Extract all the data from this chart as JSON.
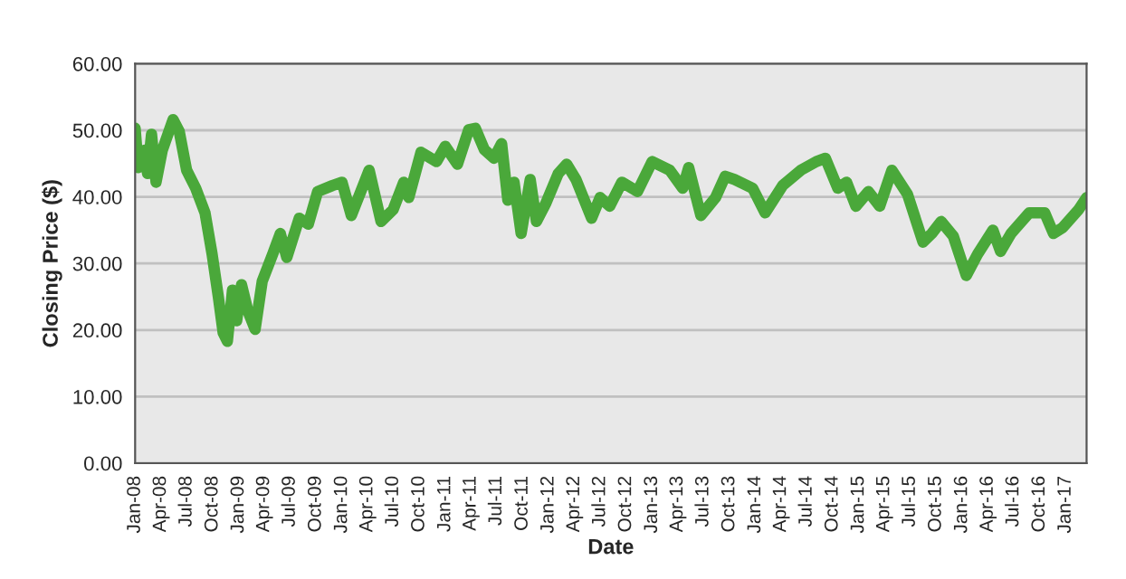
{
  "chart_data": {
    "type": "line",
    "xlabel": "Date",
    "ylabel": "Closing Price ($)",
    "grid": "y",
    "legend": false,
    "marker": "none",
    "line_style": "solid",
    "xlim": [
      "2008-01-01",
      "2017-03-16"
    ],
    "ylim": [
      0,
      60
    ],
    "yticks": [
      {
        "value": 0,
        "label": "0.00"
      },
      {
        "value": 10,
        "label": "10.00"
      },
      {
        "value": 20,
        "label": "20.00"
      },
      {
        "value": 30,
        "label": "30.00"
      },
      {
        "value": 40,
        "label": "40.00"
      },
      {
        "value": 50,
        "label": "50.00"
      },
      {
        "value": 60,
        "label": "60.00"
      }
    ],
    "xticks": [
      {
        "value": "2008-01-01",
        "label": "Jan-08"
      },
      {
        "value": "2008-04-01",
        "label": "Apr-08"
      },
      {
        "value": "2008-07-01",
        "label": "Jul-08"
      },
      {
        "value": "2008-10-01",
        "label": "Oct-08"
      },
      {
        "value": "2009-01-01",
        "label": "Jan-09"
      },
      {
        "value": "2009-04-01",
        "label": "Apr-09"
      },
      {
        "value": "2009-07-01",
        "label": "Jul-09"
      },
      {
        "value": "2009-10-01",
        "label": "Oct-09"
      },
      {
        "value": "2010-01-01",
        "label": "Jan-10"
      },
      {
        "value": "2010-04-01",
        "label": "Apr-10"
      },
      {
        "value": "2010-07-01",
        "label": "Jul-10"
      },
      {
        "value": "2010-10-01",
        "label": "Oct-10"
      },
      {
        "value": "2011-01-01",
        "label": "Jan-11"
      },
      {
        "value": "2011-04-01",
        "label": "Apr-11"
      },
      {
        "value": "2011-07-01",
        "label": "Jul-11"
      },
      {
        "value": "2011-10-01",
        "label": "Oct-11"
      },
      {
        "value": "2012-01-01",
        "label": "Jan-12"
      },
      {
        "value": "2012-04-01",
        "label": "Apr-12"
      },
      {
        "value": "2012-07-01",
        "label": "Jul-12"
      },
      {
        "value": "2012-10-01",
        "label": "Oct-12"
      },
      {
        "value": "2013-01-01",
        "label": "Jan-13"
      },
      {
        "value": "2013-04-01",
        "label": "Apr-13"
      },
      {
        "value": "2013-07-01",
        "label": "Jul-13"
      },
      {
        "value": "2013-10-01",
        "label": "Oct-13"
      },
      {
        "value": "2014-01-01",
        "label": "Jan-14"
      },
      {
        "value": "2014-04-01",
        "label": "Apr-14"
      },
      {
        "value": "2014-07-01",
        "label": "Jul-14"
      },
      {
        "value": "2014-10-01",
        "label": "Oct-14"
      },
      {
        "value": "2015-01-01",
        "label": "Jan-15"
      },
      {
        "value": "2015-04-01",
        "label": "Apr-15"
      },
      {
        "value": "2015-07-01",
        "label": "Jul-15"
      },
      {
        "value": "2015-10-01",
        "label": "Oct-15"
      },
      {
        "value": "2016-01-01",
        "label": "Jan-16"
      },
      {
        "value": "2016-04-01",
        "label": "Apr-16"
      },
      {
        "value": "2016-07-01",
        "label": "Jul-16"
      },
      {
        "value": "2016-10-01",
        "label": "Oct-16"
      },
      {
        "value": "2017-01-01",
        "label": "Jan-17"
      }
    ],
    "series": [
      {
        "color": "#4aa83a",
        "x": [
          "2008-01-01",
          "2008-01-12",
          "2008-02-03",
          "2008-02-14",
          "2008-02-28",
          "2008-03-15",
          "2008-04-06",
          "2008-05-14",
          "2008-06-05",
          "2008-07-01",
          "2008-08-02",
          "2008-09-04",
          "2008-09-29",
          "2008-10-21",
          "2008-11-07",
          "2008-11-22",
          "2008-12-10",
          "2008-12-25",
          "2009-01-11",
          "2009-02-03",
          "2009-02-28",
          "2009-03-25",
          "2009-05-01",
          "2009-05-28",
          "2009-06-20",
          "2009-08-03",
          "2009-09-04",
          "2009-10-07",
          "2009-11-28",
          "2010-01-01",
          "2010-02-03",
          "2010-04-07",
          "2010-05-19",
          "2010-07-01",
          "2010-08-07",
          "2010-08-25",
          "2010-10-07",
          "2010-12-01",
          "2011-01-01",
          "2011-02-13",
          "2011-03-25",
          "2011-04-17",
          "2011-05-19",
          "2011-06-22",
          "2011-07-19",
          "2011-08-10",
          "2011-09-01",
          "2011-09-26",
          "2011-10-28",
          "2011-11-19",
          "2011-12-22",
          "2012-02-04",
          "2012-03-05",
          "2012-04-07",
          "2012-06-01",
          "2012-07-01",
          "2012-08-04",
          "2012-09-16",
          "2012-11-10",
          "2013-01-01",
          "2013-03-04",
          "2013-04-19",
          "2013-05-10",
          "2013-06-22",
          "2013-08-13",
          "2013-09-16",
          "2013-10-19",
          "2013-12-22",
          "2014-02-04",
          "2014-04-07",
          "2014-06-10",
          "2014-08-04",
          "2014-09-05",
          "2014-10-19",
          "2014-11-19",
          "2014-12-22",
          "2015-02-04",
          "2015-03-16",
          "2015-04-28",
          "2015-06-22",
          "2015-08-16",
          "2015-09-16",
          "2015-10-19",
          "2015-12-01",
          "2016-01-16",
          "2016-02-25",
          "2016-04-19",
          "2016-05-16",
          "2016-06-22",
          "2016-08-25",
          "2016-10-19",
          "2016-11-19",
          "2016-12-22",
          "2017-02-16",
          "2017-03-16"
        ],
        "values": [
          50.3,
          44.4,
          47,
          43.5,
          49.4,
          42.2,
          47,
          51.6,
          49.8,
          44,
          41.3,
          37.6,
          31.4,
          25,
          19.6,
          18.3,
          26,
          21.4,
          26.8,
          22.8,
          20.1,
          27.3,
          31.4,
          34.5,
          30.9,
          36.8,
          35.9,
          40.8,
          41.7,
          42.2,
          37.2,
          44,
          36.3,
          38.1,
          42.2,
          39.9,
          46.7,
          45.3,
          47.6,
          44.9,
          50.1,
          50.3,
          47.1,
          45.8,
          48,
          39.5,
          42.2,
          34.5,
          42.6,
          36.3,
          39,
          43.5,
          44.9,
          42.6,
          36.8,
          39.9,
          38.6,
          42.2,
          40.8,
          45.3,
          44,
          41.3,
          44.4,
          37.2,
          39.9,
          43.1,
          42.6,
          41.3,
          37.6,
          41.7,
          44,
          45.3,
          45.8,
          41.3,
          42.2,
          38.6,
          40.8,
          38.6,
          44,
          40.4,
          33.2,
          34.5,
          36.3,
          34.1,
          28.2,
          31.4,
          35,
          31.8,
          34.5,
          37.6,
          37.6,
          34.5,
          35.4,
          38.1,
          39.9
        ]
      }
    ]
  }
}
